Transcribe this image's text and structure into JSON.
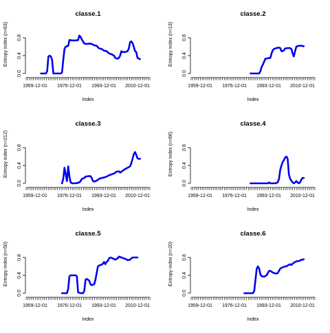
{
  "chart_data": [
    {
      "type": "line",
      "title": "classe.1",
      "xlabel": "Index",
      "ylabel": "Entropy index (n=63)",
      "x_ticks": [
        "1959-12-01",
        "1976-12-01",
        "1993-12-01",
        "2010-12-01"
      ],
      "y_ticks": [
        "0.0",
        "0.4",
        "0.8"
      ],
      "ylim": [
        0,
        1
      ],
      "line_color": "#0000ee",
      "series": [
        {
          "points": [
            [
              0.12,
              0
            ],
            [
              0.14,
              0
            ],
            [
              0.16,
              0
            ],
            [
              0.17,
              0.05
            ],
            [
              0.18,
              0.38
            ],
            [
              0.19,
              0.4
            ],
            [
              0.2,
              0.38
            ],
            [
              0.21,
              0.3
            ],
            [
              0.22,
              0
            ],
            [
              0.24,
              0
            ],
            [
              0.26,
              0
            ],
            [
              0.28,
              0
            ],
            [
              0.29,
              0.02
            ],
            [
              0.3,
              0.3
            ],
            [
              0.31,
              0.55
            ],
            [
              0.32,
              0.6
            ],
            [
              0.34,
              0.62
            ],
            [
              0.35,
              0.75
            ],
            [
              0.37,
              0.74
            ],
            [
              0.4,
              0.74
            ],
            [
              0.42,
              0.75
            ],
            [
              0.43,
              0.85
            ],
            [
              0.44,
              0.82
            ],
            [
              0.45,
              0.76
            ],
            [
              0.47,
              0.67
            ],
            [
              0.49,
              0.66
            ],
            [
              0.52,
              0.67
            ],
            [
              0.54,
              0.65
            ],
            [
              0.55,
              0.63
            ],
            [
              0.57,
              0.62
            ],
            [
              0.59,
              0.56
            ],
            [
              0.61,
              0.55
            ],
            [
              0.63,
              0.51
            ],
            [
              0.65,
              0.5
            ],
            [
              0.67,
              0.45
            ],
            [
              0.69,
              0.43
            ],
            [
              0.71,
              0.4
            ],
            [
              0.72,
              0.35
            ],
            [
              0.74,
              0.33
            ],
            [
              0.75,
              0.35
            ],
            [
              0.76,
              0.4
            ],
            [
              0.77,
              0.5
            ],
            [
              0.78,
              0.48
            ],
            [
              0.8,
              0.48
            ],
            [
              0.82,
              0.5
            ],
            [
              0.83,
              0.56
            ],
            [
              0.84,
              0.7
            ],
            [
              0.85,
              0.72
            ],
            [
              0.86,
              0.68
            ],
            [
              0.87,
              0.6
            ],
            [
              0.88,
              0.5
            ],
            [
              0.89,
              0.48
            ],
            [
              0.9,
              0.35
            ],
            [
              0.92,
              0.32
            ]
          ]
        }
      ]
    },
    {
      "type": "line",
      "title": "classe.2",
      "xlabel": "Index",
      "ylabel": "Entropy index (n=13)",
      "x_ticks": [
        "1959-12-01",
        "1976-12-01",
        "1993-12-01",
        "2010-12-01"
      ],
      "y_ticks": [
        "0.0",
        "0.4",
        "0.8"
      ],
      "ylim": [
        0,
        1
      ],
      "line_color": "#0000ee",
      "series": [
        {
          "points": [
            [
              0.48,
              0
            ],
            [
              0.52,
              0
            ],
            [
              0.55,
              0
            ],
            [
              0.56,
              0.05
            ],
            [
              0.57,
              0.15
            ],
            [
              0.58,
              0.2
            ],
            [
              0.6,
              0.33
            ],
            [
              0.62,
              0.34
            ],
            [
              0.64,
              0.35
            ],
            [
              0.65,
              0.45
            ],
            [
              0.66,
              0.52
            ],
            [
              0.67,
              0.55
            ],
            [
              0.69,
              0.57
            ],
            [
              0.71,
              0.58
            ],
            [
              0.72,
              0.57
            ],
            [
              0.73,
              0.5
            ],
            [
              0.74,
              0.5
            ],
            [
              0.75,
              0.52
            ],
            [
              0.76,
              0.56
            ],
            [
              0.78,
              0.57
            ],
            [
              0.8,
              0.57
            ],
            [
              0.81,
              0.55
            ],
            [
              0.82,
              0.45
            ],
            [
              0.83,
              0.38
            ],
            [
              0.84,
              0.5
            ],
            [
              0.85,
              0.6
            ],
            [
              0.87,
              0.62
            ],
            [
              0.89,
              0.62
            ],
            [
              0.91,
              0.61
            ]
          ]
        }
      ]
    },
    {
      "type": "line",
      "title": "classe.3",
      "xlabel": "Index",
      "ylabel": "Entropy index (n=212)",
      "x_ticks": [
        "1959-12-01",
        "1976-12-01",
        "1993-12-01",
        "2010-12-01"
      ],
      "y_ticks": [
        "0.0",
        "0.4",
        "0.8"
      ],
      "ylim": [
        0,
        1
      ],
      "line_color": "#0000ee",
      "series": [
        {
          "points": [
            [
              0.29,
              0
            ],
            [
              0.3,
              0.1
            ],
            [
              0.31,
              0.35
            ],
            [
              0.32,
              0.2
            ],
            [
              0.33,
              0.05
            ],
            [
              0.34,
              0.38
            ],
            [
              0.35,
              0.15
            ],
            [
              0.36,
              0.02
            ],
            [
              0.37,
              0
            ],
            [
              0.4,
              0
            ],
            [
              0.43,
              0.02
            ],
            [
              0.44,
              0.05
            ],
            [
              0.45,
              0.1
            ],
            [
              0.47,
              0.12
            ],
            [
              0.48,
              0.15
            ],
            [
              0.5,
              0.16
            ],
            [
              0.52,
              0.16
            ],
            [
              0.53,
              0.12
            ],
            [
              0.54,
              0.05
            ],
            [
              0.55,
              0.04
            ],
            [
              0.57,
              0.06
            ],
            [
              0.59,
              0.1
            ],
            [
              0.61,
              0.12
            ],
            [
              0.63,
              0.13
            ],
            [
              0.65,
              0.15
            ],
            [
              0.67,
              0.18
            ],
            [
              0.69,
              0.2
            ],
            [
              0.71,
              0.22
            ],
            [
              0.73,
              0.26
            ],
            [
              0.75,
              0.27
            ],
            [
              0.76,
              0.24
            ],
            [
              0.78,
              0.28
            ],
            [
              0.8,
              0.32
            ],
            [
              0.82,
              0.35
            ],
            [
              0.84,
              0.38
            ],
            [
              0.85,
              0.45
            ],
            [
              0.86,
              0.55
            ],
            [
              0.87,
              0.65
            ],
            [
              0.88,
              0.7
            ],
            [
              0.89,
              0.64
            ],
            [
              0.9,
              0.56
            ],
            [
              0.91,
              0.55
            ],
            [
              0.92,
              0.55
            ]
          ]
        }
      ]
    },
    {
      "type": "line",
      "title": "classe.4",
      "xlabel": "Index",
      "ylabel": "Entropy index (n=66)",
      "x_ticks": [
        "1959-12-01",
        "1976-12-01",
        "1993-12-01",
        "2010-12-01"
      ],
      "y_ticks": [
        "0.0",
        "0.4",
        "0.8"
      ],
      "ylim": [
        0,
        1
      ],
      "line_color": "#0000ee",
      "series": [
        {
          "points": [
            [
              0.48,
              0
            ],
            [
              0.52,
              0
            ],
            [
              0.55,
              0
            ],
            [
              0.58,
              0
            ],
            [
              0.6,
              0
            ],
            [
              0.62,
              0
            ],
            [
              0.63,
              0.02
            ],
            [
              0.64,
              0
            ],
            [
              0.66,
              0
            ],
            [
              0.68,
              0
            ],
            [
              0.7,
              0.02
            ],
            [
              0.71,
              0.1
            ],
            [
              0.72,
              0.3
            ],
            [
              0.73,
              0.4
            ],
            [
              0.74,
              0.48
            ],
            [
              0.75,
              0.52
            ],
            [
              0.76,
              0.58
            ],
            [
              0.77,
              0.6
            ],
            [
              0.78,
              0.55
            ],
            [
              0.79,
              0.2
            ],
            [
              0.8,
              0.1
            ],
            [
              0.81,
              0.06
            ],
            [
              0.82,
              0.02
            ],
            [
              0.83,
              0
            ],
            [
              0.84,
              0.02
            ],
            [
              0.85,
              0.05
            ],
            [
              0.86,
              0.02
            ],
            [
              0.87,
              0
            ],
            [
              0.88,
              0.02
            ],
            [
              0.89,
              0.08
            ],
            [
              0.9,
              0.12
            ],
            [
              0.91,
              0.12
            ]
          ]
        }
      ]
    },
    {
      "type": "line",
      "title": "classe.5",
      "xlabel": "Index",
      "ylabel": "Entropy index (n=50)",
      "x_ticks": [
        "1959-12-01",
        "1976-12-01",
        "1993-12-01",
        "2010-12-01"
      ],
      "y_ticks": [
        "0.0",
        "0.4",
        "0.8"
      ],
      "ylim": [
        0,
        1
      ],
      "line_color": "#0000ee",
      "series": [
        {
          "points": [
            [
              0.29,
              0
            ],
            [
              0.31,
              0
            ],
            [
              0.33,
              0
            ],
            [
              0.34,
              0.1
            ],
            [
              0.35,
              0.38
            ],
            [
              0.36,
              0.4
            ],
            [
              0.38,
              0.4
            ],
            [
              0.4,
              0.4
            ],
            [
              0.41,
              0.38
            ],
            [
              0.42,
              0.02
            ],
            [
              0.44,
              0
            ],
            [
              0.46,
              0
            ],
            [
              0.47,
              0.05
            ],
            [
              0.48,
              0.3
            ],
            [
              0.49,
              0.32
            ],
            [
              0.51,
              0.28
            ],
            [
              0.52,
              0.2
            ],
            [
              0.53,
              0.18
            ],
            [
              0.55,
              0.2
            ],
            [
              0.56,
              0.3
            ],
            [
              0.57,
              0.45
            ],
            [
              0.58,
              0.6
            ],
            [
              0.59,
              0.62
            ],
            [
              0.61,
              0.64
            ],
            [
              0.62,
              0.66
            ],
            [
              0.63,
              0.7
            ],
            [
              0.64,
              0.65
            ],
            [
              0.65,
              0.7
            ],
            [
              0.66,
              0.72
            ],
            [
              0.67,
              0.78
            ],
            [
              0.68,
              0.8
            ],
            [
              0.7,
              0.78
            ],
            [
              0.72,
              0.75
            ],
            [
              0.74,
              0.78
            ],
            [
              0.75,
              0.82
            ],
            [
              0.77,
              0.8
            ],
            [
              0.79,
              0.78
            ],
            [
              0.81,
              0.76
            ],
            [
              0.82,
              0.74
            ],
            [
              0.84,
              0.75
            ],
            [
              0.85,
              0.78
            ],
            [
              0.86,
              0.8
            ],
            [
              0.88,
              0.8
            ],
            [
              0.9,
              0.8
            ]
          ]
        }
      ]
    },
    {
      "type": "line",
      "title": "classe.6",
      "xlabel": "Index",
      "ylabel": "Entropy index (n=20)",
      "x_ticks": [
        "1959-12-01",
        "1976-12-01",
        "1993-12-01",
        "2010-12-01"
      ],
      "y_ticks": [
        "0.0",
        "0.4",
        "0.8"
      ],
      "ylim": [
        0,
        1
      ],
      "line_color": "#0000ee",
      "series": [
        {
          "points": [
            [
              0.43,
              0
            ],
            [
              0.47,
              0
            ],
            [
              0.5,
              0
            ],
            [
              0.51,
              0.05
            ],
            [
              0.52,
              0.3
            ],
            [
              0.53,
              0.55
            ],
            [
              0.54,
              0.6
            ],
            [
              0.55,
              0.55
            ],
            [
              0.56,
              0.42
            ],
            [
              0.57,
              0.38
            ],
            [
              0.59,
              0.37
            ],
            [
              0.61,
              0.4
            ],
            [
              0.62,
              0.45
            ],
            [
              0.63,
              0.5
            ],
            [
              0.64,
              0.5
            ],
            [
              0.65,
              0.48
            ],
            [
              0.67,
              0.45
            ],
            [
              0.69,
              0.44
            ],
            [
              0.7,
              0.45
            ],
            [
              0.71,
              0.5
            ],
            [
              0.72,
              0.55
            ],
            [
              0.74,
              0.58
            ],
            [
              0.76,
              0.6
            ],
            [
              0.77,
              0.6
            ],
            [
              0.78,
              0.62
            ],
            [
              0.8,
              0.65
            ],
            [
              0.81,
              0.63
            ],
            [
              0.82,
              0.66
            ],
            [
              0.84,
              0.7
            ],
            [
              0.86,
              0.72
            ],
            [
              0.87,
              0.72
            ],
            [
              0.88,
              0.73
            ],
            [
              0.89,
              0.75
            ],
            [
              0.9,
              0.75
            ],
            [
              0.91,
              0.76
            ]
          ]
        }
      ]
    }
  ]
}
